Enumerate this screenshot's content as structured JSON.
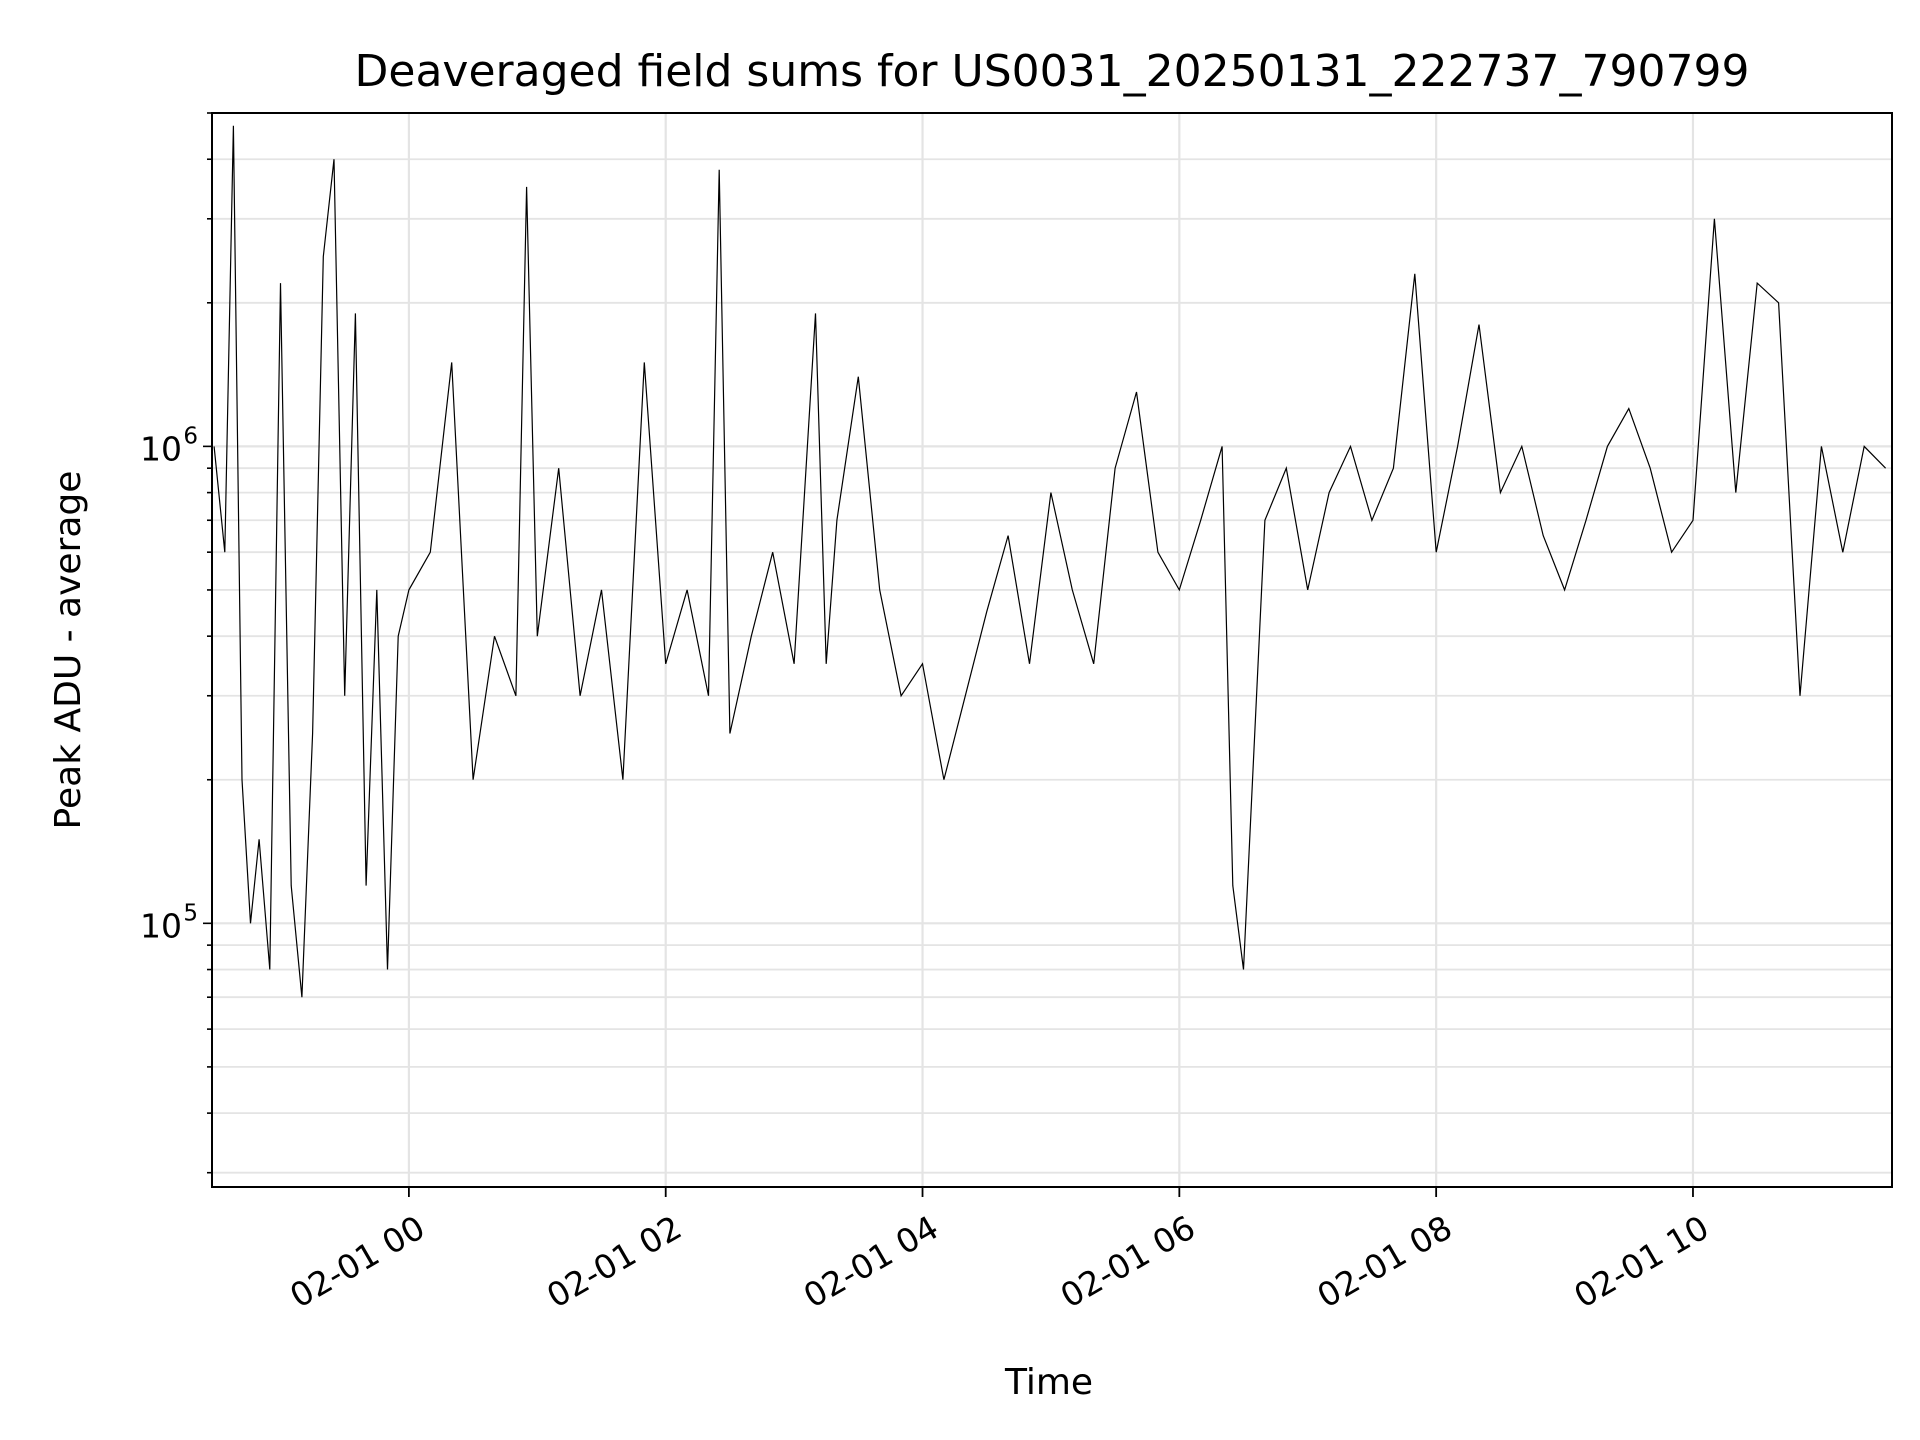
{
  "chart_data": {
    "type": "line",
    "title": "Deaveraged field sums for US0031_20250131_222737_790799",
    "xlabel": "Time",
    "ylabel": "Peak ADU - average",
    "y_scale": "log",
    "ylim": [
      28000,
      5000000
    ],
    "xlim": [
      "2025-01-31T22:28:00",
      "2025-02-01T11:33:00"
    ],
    "x_ticks": [
      {
        "value": "2025-02-01T00:00:00",
        "label": "02-01 00"
      },
      {
        "value": "2025-02-01T02:00:00",
        "label": "02-01 02"
      },
      {
        "value": "2025-02-01T04:00:00",
        "label": "02-01 04"
      },
      {
        "value": "2025-02-01T06:00:00",
        "label": "02-01 06"
      },
      {
        "value": "2025-02-01T08:00:00",
        "label": "02-01 08"
      },
      {
        "value": "2025-02-01T10:00:00",
        "label": "02-01 10"
      }
    ],
    "y_ticks": [
      {
        "value": 100000,
        "base": "10",
        "exp": "5"
      },
      {
        "value": 1000000,
        "base": "10",
        "exp": "6"
      }
    ],
    "grid": true,
    "line_color": "#000000",
    "series": [
      {
        "x": [
          "2025-01-31T22:29:00",
          "2025-01-31T22:34:00",
          "2025-01-31T22:38:00",
          "2025-01-31T22:42:00",
          "2025-01-31T22:46:00",
          "2025-01-31T22:50:00",
          "2025-01-31T22:55:00",
          "2025-01-31T23:00:00",
          "2025-01-31T23:05:00",
          "2025-01-31T23:10:00",
          "2025-01-31T23:15:00",
          "2025-01-31T23:20:00",
          "2025-01-31T23:25:00",
          "2025-01-31T23:30:00",
          "2025-01-31T23:35:00",
          "2025-01-31T23:40:00",
          "2025-01-31T23:45:00",
          "2025-01-31T23:50:00",
          "2025-01-31T23:55:00",
          "2025-02-01T00:00:00",
          "2025-02-01T00:10:00",
          "2025-02-01T00:20:00",
          "2025-02-01T00:30:00",
          "2025-02-01T00:40:00",
          "2025-02-01T00:50:00",
          "2025-02-01T00:55:00",
          "2025-02-01T01:00:00",
          "2025-02-01T01:10:00",
          "2025-02-01T01:20:00",
          "2025-02-01T01:30:00",
          "2025-02-01T01:40:00",
          "2025-02-01T01:50:00",
          "2025-02-01T02:00:00",
          "2025-02-01T02:10:00",
          "2025-02-01T02:20:00",
          "2025-02-01T02:25:00",
          "2025-02-01T02:30:00",
          "2025-02-01T02:40:00",
          "2025-02-01T02:50:00",
          "2025-02-01T03:00:00",
          "2025-02-01T03:10:00",
          "2025-02-01T03:15:00",
          "2025-02-01T03:20:00",
          "2025-02-01T03:30:00",
          "2025-02-01T03:40:00",
          "2025-02-01T03:50:00",
          "2025-02-01T04:00:00",
          "2025-02-01T04:10:00",
          "2025-02-01T04:20:00",
          "2025-02-01T04:30:00",
          "2025-02-01T04:40:00",
          "2025-02-01T04:50:00",
          "2025-02-01T05:00:00",
          "2025-02-01T05:10:00",
          "2025-02-01T05:20:00",
          "2025-02-01T05:30:00",
          "2025-02-01T05:40:00",
          "2025-02-01T05:50:00",
          "2025-02-01T06:00:00",
          "2025-02-01T06:10:00",
          "2025-02-01T06:20:00",
          "2025-02-01T06:25:00",
          "2025-02-01T06:30:00",
          "2025-02-01T06:40:00",
          "2025-02-01T06:50:00",
          "2025-02-01T07:00:00",
          "2025-02-01T07:10:00",
          "2025-02-01T07:20:00",
          "2025-02-01T07:30:00",
          "2025-02-01T07:40:00",
          "2025-02-01T07:50:00",
          "2025-02-01T08:00:00",
          "2025-02-01T08:10:00",
          "2025-02-01T08:20:00",
          "2025-02-01T08:30:00",
          "2025-02-01T08:40:00",
          "2025-02-01T08:50:00",
          "2025-02-01T09:00:00",
          "2025-02-01T09:10:00",
          "2025-02-01T09:20:00",
          "2025-02-01T09:30:00",
          "2025-02-01T09:40:00",
          "2025-02-01T09:50:00",
          "2025-02-01T10:00:00",
          "2025-02-01T10:10:00",
          "2025-02-01T10:20:00",
          "2025-02-01T10:30:00",
          "2025-02-01T10:40:00",
          "2025-02-01T10:50:00",
          "2025-02-01T11:00:00",
          "2025-02-01T11:10:00",
          "2025-02-01T11:20:00",
          "2025-02-01T11:30:00"
        ],
        "y": [
          1000000,
          600000,
          4700000,
          200000,
          100000,
          150000,
          80000,
          2200000,
          120000,
          70000,
          250000,
          2500000,
          4000000,
          300000,
          1900000,
          120000,
          500000,
          80000,
          400000,
          500000,
          600000,
          1500000,
          200000,
          400000,
          300000,
          3500000,
          400000,
          900000,
          300000,
          500000,
          200000,
          1500000,
          350000,
          500000,
          300000,
          3800000,
          250000,
          400000,
          600000,
          350000,
          1900000,
          350000,
          700000,
          1400000,
          500000,
          300000,
          350000,
          200000,
          300000,
          450000,
          650000,
          350000,
          800000,
          500000,
          350000,
          900000,
          1300000,
          600000,
          500000,
          700000,
          1000000,
          120000,
          80000,
          700000,
          900000,
          500000,
          800000,
          1000000,
          700000,
          900000,
          2300000,
          600000,
          1000000,
          1800000,
          800000,
          1000000,
          650000,
          500000,
          700000,
          1000000,
          1200000,
          900000,
          600000,
          700000,
          3000000,
          800000,
          2200000,
          2000000,
          300000,
          1000000,
          600000,
          1000000,
          900000
        ]
      }
    ]
  }
}
